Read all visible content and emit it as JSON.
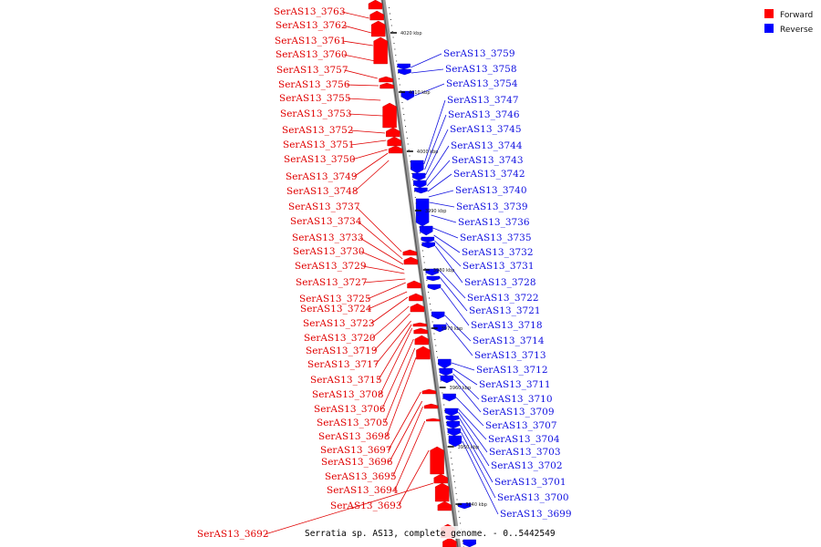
{
  "legend": {
    "forward_label": "Forward",
    "reverse_label": "Reverse",
    "forward_color": "#ff0000",
    "reverse_color": "#0000ff"
  },
  "caption": "Serratia sp. AS13, complete genome. - 0..5442549",
  "ticks": [
    "4020 kbp",
    "4010 kbp",
    "4000 kbp",
    "3990 kbp",
    "3980 kbp",
    "3970 kbp",
    "3960 kbp",
    "3950 kbp",
    "3940 kbp"
  ],
  "forward_genes": [
    "SerAS13_3763",
    "SerAS13_3762",
    "SerAS13_3761",
    "SerAS13_3760",
    "SerAS13_3757",
    "SerAS13_3756",
    "SerAS13_3755",
    "SerAS13_3753",
    "SerAS13_3752",
    "SerAS13_3751",
    "SerAS13_3750",
    "SerAS13_3749",
    "SerAS13_3748",
    "SerAS13_3737",
    "SerAS13_3734",
    "SerAS13_3733",
    "SerAS13_3730",
    "SerAS13_3729",
    "SerAS13_3727",
    "SerAS13_3725",
    "SerAS13_3724",
    "SerAS13_3723",
    "SerAS13_3720",
    "SerAS13_3719",
    "SerAS13_3717",
    "SerAS13_3715",
    "SerAS13_3708",
    "SerAS13_3706",
    "SerAS13_3705",
    "SerAS13_3698",
    "SerAS13_3697",
    "SerAS13_3696",
    "SerAS13_3695",
    "SerAS13_3694",
    "SerAS13_3693",
    "SerAS13_3692"
  ],
  "reverse_genes": [
    "SerAS13_3759",
    "SerAS13_3758",
    "SerAS13_3754",
    "SerAS13_3747",
    "SerAS13_3746",
    "SerAS13_3745",
    "SerAS13_3744",
    "SerAS13_3743",
    "SerAS13_3742",
    "SerAS13_3740",
    "SerAS13_3739",
    "SerAS13_3736",
    "SerAS13_3735",
    "SerAS13_3732",
    "SerAS13_3731",
    "SerAS13_3728",
    "SerAS13_3722",
    "SerAS13_3721",
    "SerAS13_3718",
    "SerAS13_3714",
    "SerAS13_3713",
    "SerAS13_3712",
    "SerAS13_3711",
    "SerAS13_3710",
    "SerAS13_3709",
    "SerAS13_3707",
    "SerAS13_3704",
    "SerAS13_3703",
    "SerAS13_3702",
    "SerAS13_3701",
    "SerAS13_3700",
    "SerAS13_3699"
  ]
}
